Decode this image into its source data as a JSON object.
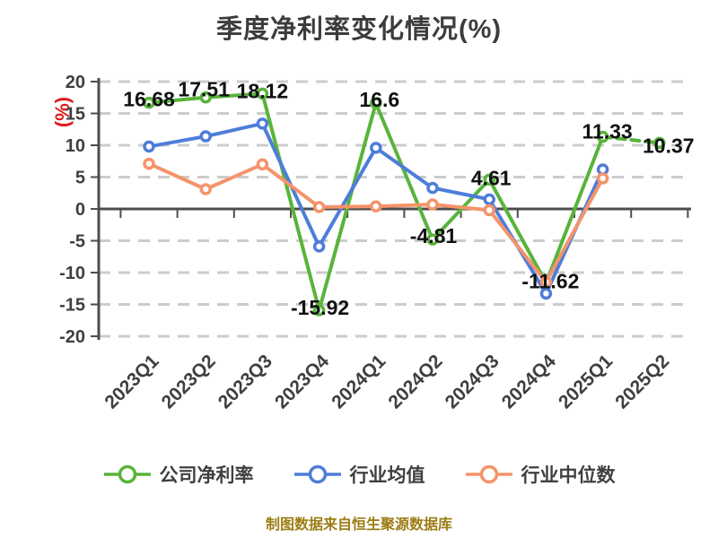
{
  "title": "季度净利率变化情况(%)",
  "y_axis": {
    "unit_label": "(%)",
    "min": -20,
    "max": 20,
    "tick_step": 5,
    "tick_labels": [
      "20",
      "15",
      "10",
      "5",
      "0",
      "-5",
      "-10",
      "-15",
      "-20"
    ]
  },
  "footer": "制图数据来自恒生聚源数据库",
  "colors": {
    "company": "#58b43a",
    "industry_avg": "#4e7dd9",
    "industry_median": "#f5936a",
    "title_text": "#3c3c3c",
    "axis_text": "#3f3f3f",
    "value_label_text": "#111111",
    "axis_line": "#4d4d4d",
    "gridline": "#cccccc",
    "unit_label_text": "#df1a1a",
    "footer_text": "#9c7d16",
    "marker_fill": "#ffffff",
    "background": "#ffffff"
  },
  "chart_data": {
    "type": "line",
    "title": "季度净利率变化情况(%)",
    "categories": [
      "2023Q1",
      "2023Q2",
      "2023Q3",
      "2023Q4",
      "2024Q1",
      "2024Q2",
      "2024Q3",
      "2024Q4",
      "2025Q1",
      "2025Q2"
    ],
    "series": [
      {
        "name": "公司净利率",
        "color": "#58b43a",
        "show_value_labels": true,
        "last_segment_style": "dashed",
        "values": [
          16.68,
          17.51,
          18.12,
          -15.92,
          16.6,
          -4.81,
          4.61,
          -11.62,
          11.33,
          10.37
        ]
      },
      {
        "name": "行业均值",
        "color": "#4e7dd9",
        "show_value_labels": false,
        "last_segment_style": "solid",
        "values": [
          9.8,
          11.4,
          13.4,
          -5.9,
          9.6,
          3.3,
          1.5,
          -13.3,
          6.2,
          null
        ]
      },
      {
        "name": "行业中位数",
        "color": "#f5936a",
        "show_value_labels": false,
        "last_segment_style": "solid",
        "values": [
          7.1,
          3.1,
          7.0,
          0.3,
          0.4,
          0.7,
          -0.2,
          -11.5,
          4.8,
          null
        ]
      }
    ],
    "ylim": [
      -20,
      20
    ],
    "ylabel": "(%)",
    "xlabel": "",
    "grid": "horizontal-dashed",
    "legend_position": "bottom",
    "x_tick_label_rotation": 45
  }
}
